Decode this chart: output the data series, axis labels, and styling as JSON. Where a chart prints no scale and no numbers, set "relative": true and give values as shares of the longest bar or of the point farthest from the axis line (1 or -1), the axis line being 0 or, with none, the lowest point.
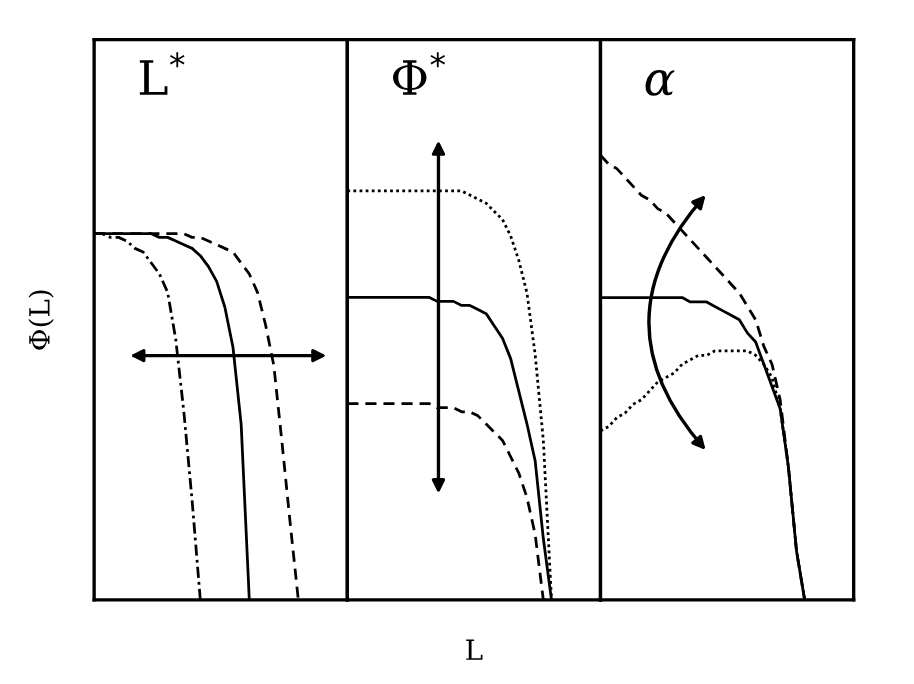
{
  "chart_data": [
    {
      "type": "line",
      "title": "L$^{*}$",
      "ylabel": "Φ(L)",
      "relative": true,
      "tick_labels": false,
      "categories": [
        null,
        null,
        null,
        null,
        null,
        null,
        null,
        null,
        null,
        null,
        null,
        null,
        null,
        null,
        null,
        null,
        null,
        null,
        null,
        null,
        null,
        null,
        null,
        null,
        null,
        null,
        null,
        null,
        null,
        null,
        null,
        null
      ],
      "series": [
        {
          "color": "#000000",
          "line_style": "dashdot",
          "values": [
            1.0,
            1.0,
            0.99,
            0.99,
            0.98,
            0.96,
            0.95,
            0.92,
            0.89,
            0.84,
            0.71,
            0.51,
            0.27,
            0,
            null,
            null,
            null,
            null,
            null,
            null,
            null,
            null,
            null,
            null,
            null,
            null,
            null,
            null,
            null,
            null,
            null,
            null
          ]
        },
        {
          "color": "#000000",
          "line_style": "solid",
          "values": [
            1.0,
            1.0,
            1.0,
            1.0,
            1.0,
            1.0,
            1.0,
            1.0,
            0.99,
            0.99,
            0.98,
            0.97,
            0.96,
            0.94,
            0.91,
            0.87,
            0.8,
            0.69,
            0.48,
            0,
            null,
            null,
            null,
            null,
            null,
            null,
            null,
            null,
            null,
            null,
            null,
            null
          ]
        },
        {
          "color": "#000000",
          "line_style": "dashed",
          "values": [
            1.0,
            1.0,
            1.0,
            1.0,
            1.0,
            1.0,
            1.0,
            1.0,
            1.0,
            1.0,
            1.0,
            1.0,
            0.99,
            0.99,
            0.98,
            0.97,
            0.96,
            0.95,
            0.92,
            0.89,
            0.84,
            0.75,
            0.64,
            0.43,
            0.21,
            0,
            null,
            null,
            null,
            null,
            null,
            null
          ]
        }
      ]
    },
    {
      "type": "line",
      "title": "Φ$^{*}$",
      "xlabel": "L",
      "relative": true,
      "tick_labels": false,
      "categories": [
        null,
        null,
        null,
        null,
        null,
        null,
        null,
        null,
        null,
        null,
        null,
        null,
        null,
        null,
        null,
        null,
        null,
        null,
        null,
        null,
        null,
        null,
        null,
        null,
        null,
        null,
        null,
        null,
        null,
        null,
        null,
        null
      ],
      "series": [
        {
          "color": "#000000",
          "line_style": "dotted",
          "values": [
            1.0,
            1.0,
            1.0,
            1.0,
            1.0,
            1.0,
            1.0,
            1.0,
            1.0,
            1.0,
            1.0,
            1.0,
            1.0,
            1.0,
            1.0,
            0.99,
            0.98,
            0.97,
            0.95,
            0.93,
            0.89,
            0.83,
            0.75,
            0.6,
            0.39,
            0,
            null,
            null,
            null,
            null,
            null,
            null
          ]
        },
        {
          "color": "#000000",
          "line_style": "solid",
          "values": [
            0.74,
            0.74,
            0.74,
            0.74,
            0.74,
            0.74,
            0.74,
            0.74,
            0.74,
            0.74,
            0.74,
            0.73,
            0.73,
            0.73,
            0.72,
            0.72,
            0.71,
            0.7,
            0.67,
            0.64,
            0.59,
            0.51,
            0.43,
            0.34,
            0.15,
            0,
            null,
            null,
            null,
            null,
            null,
            null
          ]
        },
        {
          "color": "#000000",
          "line_style": "dashed",
          "values": [
            0.48,
            0.48,
            0.48,
            0.48,
            0.48,
            0.48,
            0.48,
            0.48,
            0.48,
            0.48,
            0.48,
            0.47,
            0.47,
            0.47,
            0.46,
            0.46,
            0.45,
            0.43,
            0.41,
            0.39,
            0.35,
            0.31,
            0.25,
            0.16,
            0,
            null,
            null,
            null,
            null,
            null,
            null,
            null
          ]
        }
      ]
    },
    {
      "type": "line",
      "title": "α",
      "relative": true,
      "tick_labels": false,
      "categories": [
        null,
        null,
        null,
        null,
        null,
        null,
        null,
        null,
        null,
        null,
        null,
        null,
        null,
        null,
        null,
        null,
        null,
        null,
        null,
        null,
        null,
        null,
        null,
        null,
        null,
        null,
        null,
        null,
        null,
        null,
        null,
        null
      ],
      "series": [
        {
          "color": "#000000",
          "line_style": "solid",
          "values": [
            0.68,
            0.68,
            0.68,
            0.68,
            0.68,
            0.68,
            0.68,
            0.68,
            0.68,
            0.68,
            0.68,
            0.67,
            0.67,
            0.67,
            0.66,
            0.65,
            0.64,
            0.63,
            0.6,
            0.58,
            0.53,
            0.48,
            0.43,
            0.3,
            0.11,
            0,
            null,
            null,
            null,
            null,
            null,
            null
          ]
        },
        {
          "color": "#000000",
          "line_style": "dashed",
          "values": [
            1.0,
            0.98,
            0.97,
            0.95,
            0.93,
            0.91,
            0.9,
            0.88,
            0.87,
            0.85,
            0.83,
            0.81,
            0.79,
            0.77,
            0.75,
            0.73,
            0.71,
            0.69,
            0.66,
            0.63,
            0.57,
            0.53,
            0.45,
            0.3,
            0.11,
            0,
            null,
            null,
            null,
            null,
            null,
            null
          ]
        },
        {
          "color": "#000000",
          "line_style": "dotted",
          "values": [
            0.38,
            0.39,
            0.41,
            0.42,
            0.44,
            0.45,
            0.47,
            0.49,
            0.5,
            0.51,
            0.53,
            0.54,
            0.55,
            0.55,
            0.56,
            0.56,
            0.56,
            0.56,
            0.56,
            0.55,
            0.53,
            0.5,
            0.43,
            0.3,
            0.11,
            0,
            null,
            null,
            null,
            null,
            null,
            null
          ]
        }
      ]
    }
  ]
}
